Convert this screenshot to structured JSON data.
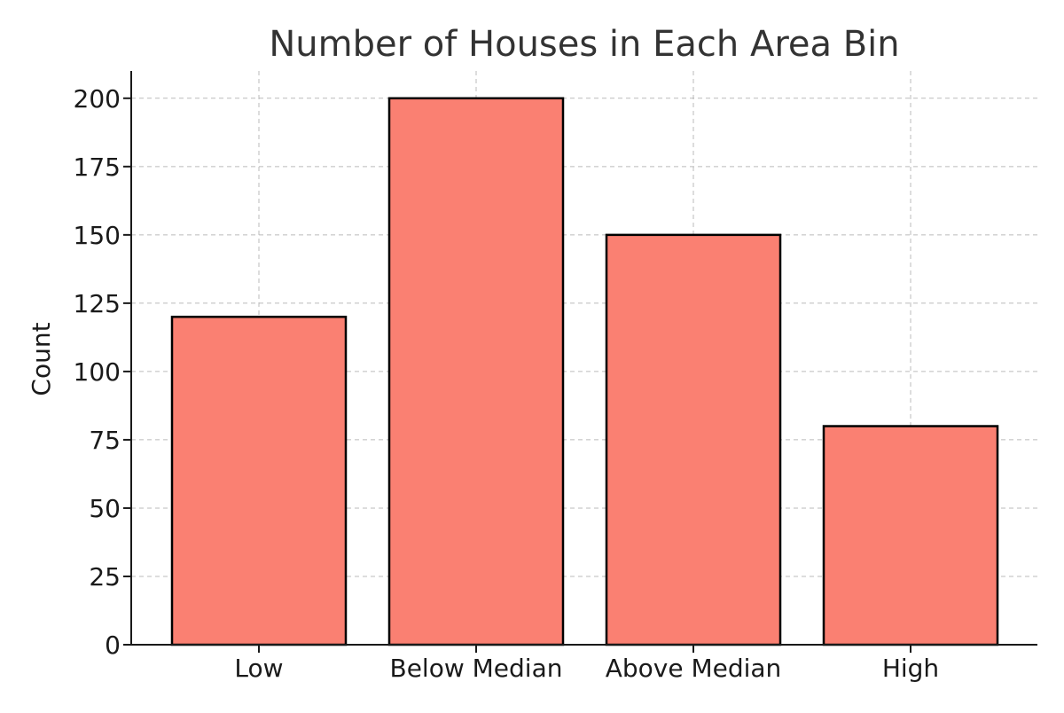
{
  "chart_data": {
    "type": "bar",
    "title": "Number of Houses in Each Area Bin",
    "xlabel": "",
    "ylabel": "Count",
    "categories": [
      "Low",
      "Below Median",
      "Above Median",
      "High"
    ],
    "values": [
      120,
      200,
      150,
      80
    ],
    "ylim": [
      0,
      210
    ],
    "yticks": [
      0,
      25,
      50,
      75,
      100,
      125,
      150,
      175,
      200
    ],
    "ytick_labels": [
      "0",
      "25",
      "50",
      "75",
      "100",
      "125",
      "150",
      "175",
      "200"
    ],
    "grid": true,
    "legend": false,
    "bar_color": "#fa8072",
    "edge_color": "#000000"
  }
}
